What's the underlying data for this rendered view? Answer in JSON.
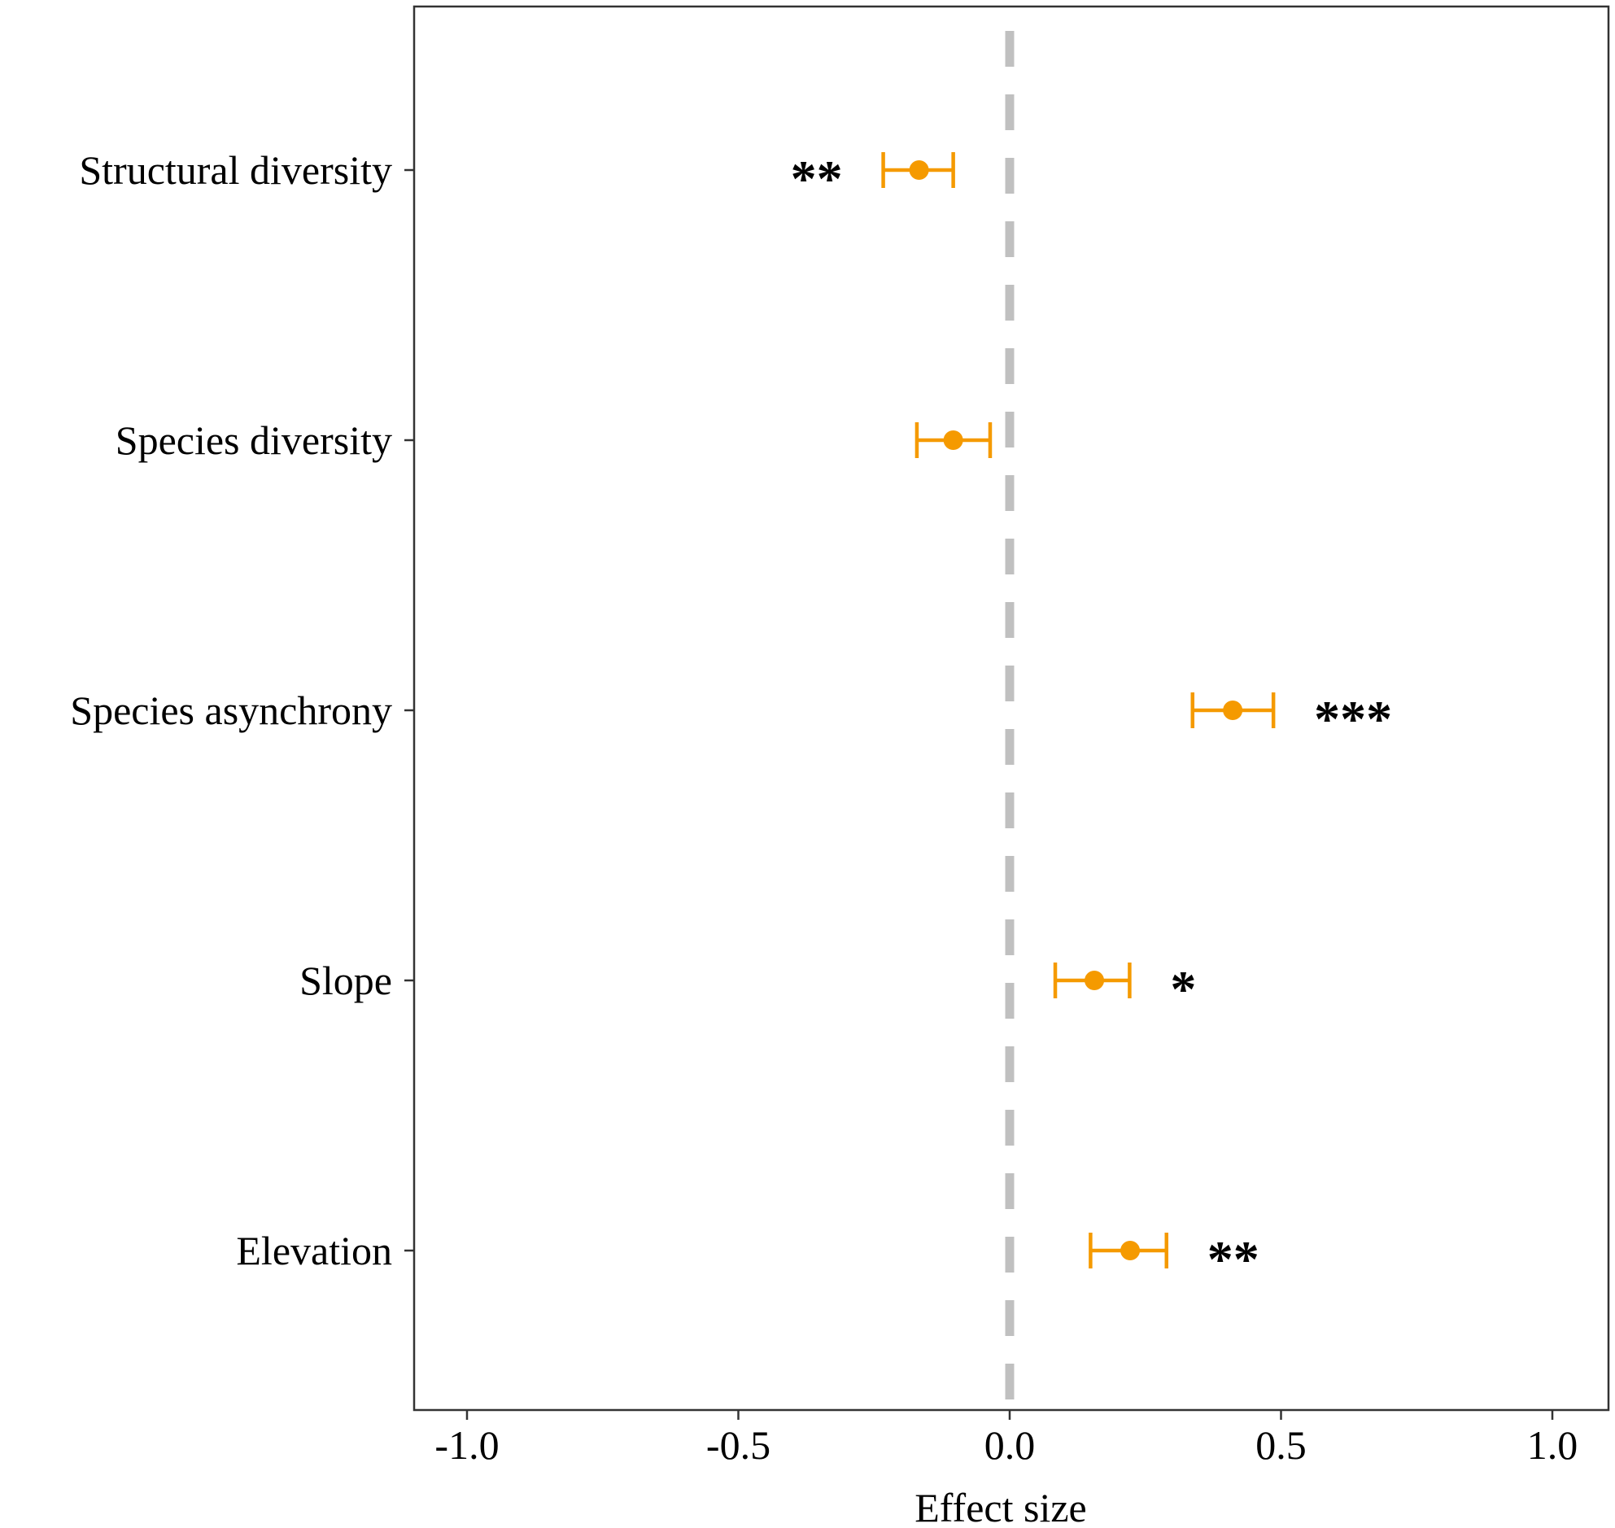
{
  "chart_data": {
    "type": "scatter",
    "subtype": "forest-plot",
    "title": "",
    "xlabel": "Effect size",
    "ylabel": "",
    "xlim": [
      -1.1,
      1.1
    ],
    "x_ticks": [
      -1.0,
      -0.5,
      0.0,
      0.5,
      1.0
    ],
    "x_tick_labels": [
      "-1.0",
      "-0.5",
      "0.0",
      "0.5",
      "1.0"
    ],
    "categories": [
      "Structural diversity",
      "Species diversity",
      "Species asynchrony",
      "Slope",
      "Elevation"
    ],
    "points": [
      {
        "label": "Structural diversity",
        "estimate": -0.167,
        "lower": -0.233,
        "upper": -0.104,
        "significance": "**"
      },
      {
        "label": "Species diversity",
        "estimate": -0.104,
        "lower": -0.171,
        "upper": -0.036,
        "significance": ""
      },
      {
        "label": "Species asynchrony",
        "estimate": 0.411,
        "lower": 0.337,
        "upper": 0.486,
        "significance": "***"
      },
      {
        "label": "Slope",
        "estimate": 0.156,
        "lower": 0.084,
        "upper": 0.221,
        "significance": "*"
      },
      {
        "label": "Elevation",
        "estimate": 0.222,
        "lower": 0.149,
        "upper": 0.289,
        "significance": "**"
      }
    ],
    "reference_line": {
      "x": 0.0,
      "style": "dashed"
    },
    "grid": false,
    "colors": {
      "point": "#f59a00",
      "reference_line": "#c0c0c0",
      "frame": "#333333"
    }
  }
}
